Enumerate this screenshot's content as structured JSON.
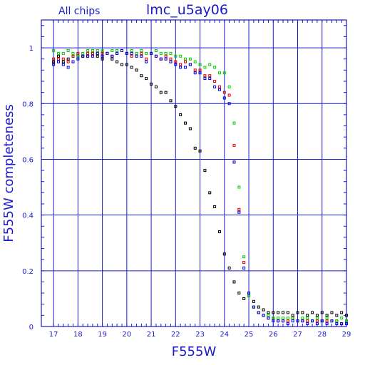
{
  "chart_data": {
    "type": "scatter",
    "title": "lmc_u5ay06",
    "subtitle": "All chips",
    "xlabel": "F555W",
    "ylabel": "F555W completeness",
    "xlim": [
      16.5,
      29
    ],
    "ylim": [
      0,
      1.1
    ],
    "xticks": [
      "17",
      "18",
      "19",
      "20",
      "21",
      "22",
      "23",
      "24",
      "25",
      "26",
      "27",
      "28",
      "29"
    ],
    "yticks": [
      "0",
      "0.2",
      "0.4",
      "0.6",
      "0.8",
      "1"
    ],
    "grid": true,
    "colors": {
      "axis": "#1a1acc",
      "grid": "#1a1acc"
    },
    "series": [
      {
        "color": "#000000",
        "x": [
          17.0,
          17.2,
          17.4,
          17.6,
          17.8,
          18.0,
          18.2,
          18.4,
          18.6,
          18.8,
          19.0,
          19.2,
          19.4,
          19.6,
          19.8,
          20.0,
          20.2,
          20.4,
          20.6,
          20.8,
          21.0,
          21.2,
          21.4,
          21.6,
          21.8,
          22.0,
          22.2,
          22.4,
          22.6,
          22.8,
          23.0,
          23.2,
          23.4,
          23.6,
          23.8,
          24.0,
          24.2,
          24.4,
          24.6,
          24.8,
          25.0,
          25.2,
          25.4,
          25.6,
          25.8,
          26.0,
          26.2,
          26.4,
          26.6,
          26.8,
          27.0,
          27.2,
          27.4,
          27.6,
          27.8,
          28.0,
          28.2,
          28.4,
          28.6,
          28.8,
          29.0
        ],
        "y": [
          0.95,
          0.97,
          0.95,
          0.96,
          0.97,
          0.97,
          0.97,
          0.97,
          0.98,
          0.97,
          0.96,
          0.98,
          0.96,
          0.95,
          0.94,
          0.94,
          0.93,
          0.92,
          0.9,
          0.89,
          0.87,
          0.86,
          0.84,
          0.84,
          0.81,
          0.79,
          0.76,
          0.73,
          0.71,
          0.64,
          0.63,
          0.56,
          0.48,
          0.43,
          0.34,
          0.26,
          0.21,
          0.16,
          0.12,
          0.1,
          0.11,
          0.09,
          0.07,
          0.06,
          0.05,
          0.05,
          0.05,
          0.05,
          0.05,
          0.04,
          0.05,
          0.05,
          0.04,
          0.05,
          0.04,
          0.05,
          0.04,
          0.05,
          0.04,
          0.05,
          0.04
        ]
      },
      {
        "color": "#e00000",
        "x": [
          17.0,
          17.2,
          17.4,
          17.6,
          17.8,
          18.0,
          18.2,
          18.4,
          18.6,
          18.8,
          19.0,
          19.2,
          19.4,
          19.6,
          19.8,
          20.0,
          20.2,
          20.4,
          20.6,
          20.8,
          21.0,
          21.2,
          21.4,
          21.6,
          21.8,
          22.0,
          22.2,
          22.4,
          22.6,
          22.8,
          23.0,
          23.2,
          23.4,
          23.6,
          23.8,
          24.0,
          24.2,
          24.4,
          24.6,
          24.8,
          25.0,
          25.2,
          25.4,
          25.6,
          25.8,
          26.0,
          26.2,
          26.4,
          26.6,
          26.8,
          27.0,
          27.2,
          27.4,
          27.6,
          27.8,
          28.0,
          28.2,
          28.4,
          28.6,
          28.8,
          29.0
        ],
        "y": [
          0.96,
          0.96,
          0.96,
          0.95,
          0.97,
          0.98,
          0.97,
          0.98,
          0.98,
          0.98,
          0.98,
          0.98,
          0.97,
          0.98,
          0.99,
          0.98,
          0.97,
          0.98,
          0.98,
          0.96,
          0.98,
          0.97,
          0.96,
          0.97,
          0.96,
          0.95,
          0.94,
          0.95,
          0.94,
          0.92,
          0.92,
          0.9,
          0.9,
          0.88,
          0.86,
          0.84,
          0.83,
          0.65,
          0.42,
          0.23,
          0.12,
          0.07,
          0.05,
          0.04,
          0.03,
          0.03,
          0.02,
          0.02,
          0.02,
          0.03,
          0.02,
          0.02,
          0.02,
          0.02,
          0.02,
          0.02,
          0.02,
          0.02,
          0.02,
          0.01,
          0.02
        ]
      },
      {
        "color": "#00d000",
        "x": [
          17.0,
          17.2,
          17.4,
          17.6,
          17.8,
          18.0,
          18.2,
          18.4,
          18.6,
          18.8,
          19.0,
          19.2,
          19.4,
          19.6,
          19.8,
          20.0,
          20.2,
          20.4,
          20.6,
          20.8,
          21.0,
          21.2,
          21.4,
          21.6,
          21.8,
          22.0,
          22.2,
          22.4,
          22.6,
          22.8,
          23.0,
          23.2,
          23.4,
          23.6,
          23.8,
          24.0,
          24.2,
          24.4,
          24.6,
          24.8,
          25.0,
          25.2,
          25.4,
          25.6,
          25.8,
          26.0,
          26.2,
          26.4,
          26.6,
          26.8,
          27.0,
          27.2,
          27.4,
          27.6,
          27.8,
          28.0,
          28.2,
          28.4,
          28.6,
          28.8,
          29.0
        ],
        "y": [
          0.99,
          0.98,
          0.98,
          0.99,
          0.98,
          0.97,
          0.98,
          0.99,
          0.99,
          0.99,
          0.99,
          0.98,
          0.99,
          0.99,
          0.99,
          0.98,
          0.99,
          0.98,
          0.99,
          0.98,
          0.98,
          0.99,
          0.98,
          0.98,
          0.98,
          0.97,
          0.97,
          0.96,
          0.96,
          0.95,
          0.94,
          0.93,
          0.94,
          0.93,
          0.91,
          0.91,
          0.86,
          0.73,
          0.5,
          0.25,
          0.11,
          0.07,
          0.05,
          0.04,
          0.04,
          0.03,
          0.03,
          0.03,
          0.03,
          0.03,
          0.02,
          0.03,
          0.03,
          0.02,
          0.03,
          0.02,
          0.03,
          0.02,
          0.02,
          0.03,
          0.02
        ]
      },
      {
        "color": "#0000e0",
        "x": [
          17.0,
          17.2,
          17.4,
          17.6,
          17.8,
          18.0,
          18.2,
          18.4,
          18.6,
          18.8,
          19.0,
          19.2,
          19.4,
          19.6,
          19.8,
          20.0,
          20.2,
          20.4,
          20.6,
          20.8,
          21.0,
          21.2,
          21.4,
          21.6,
          21.8,
          22.0,
          22.2,
          22.4,
          22.6,
          22.8,
          23.0,
          23.2,
          23.4,
          23.6,
          23.8,
          24.0,
          24.2,
          24.4,
          24.6,
          24.8,
          25.0,
          25.2,
          25.4,
          25.6,
          25.8,
          26.0,
          26.2,
          26.4,
          26.6,
          26.8,
          27.0,
          27.2,
          27.4,
          27.6,
          27.8,
          28.0,
          28.2,
          28.4,
          28.6,
          28.8,
          29.0
        ],
        "y": [
          0.94,
          0.95,
          0.94,
          0.93,
          0.95,
          0.96,
          0.97,
          0.97,
          0.97,
          0.98,
          0.97,
          0.98,
          0.97,
          0.98,
          0.99,
          0.98,
          0.98,
          0.97,
          0.97,
          0.95,
          0.98,
          0.97,
          0.96,
          0.96,
          0.95,
          0.94,
          0.93,
          0.93,
          0.94,
          0.91,
          0.91,
          0.89,
          0.89,
          0.86,
          0.85,
          0.82,
          0.8,
          0.59,
          0.41,
          0.21,
          0.12,
          0.07,
          0.05,
          0.04,
          0.03,
          0.02,
          0.02,
          0.02,
          0.01,
          0.02,
          0.02,
          0.02,
          0.01,
          0.02,
          0.01,
          0.02,
          0.01,
          0.02,
          0.01,
          0.01,
          0.01
        ]
      }
    ]
  }
}
